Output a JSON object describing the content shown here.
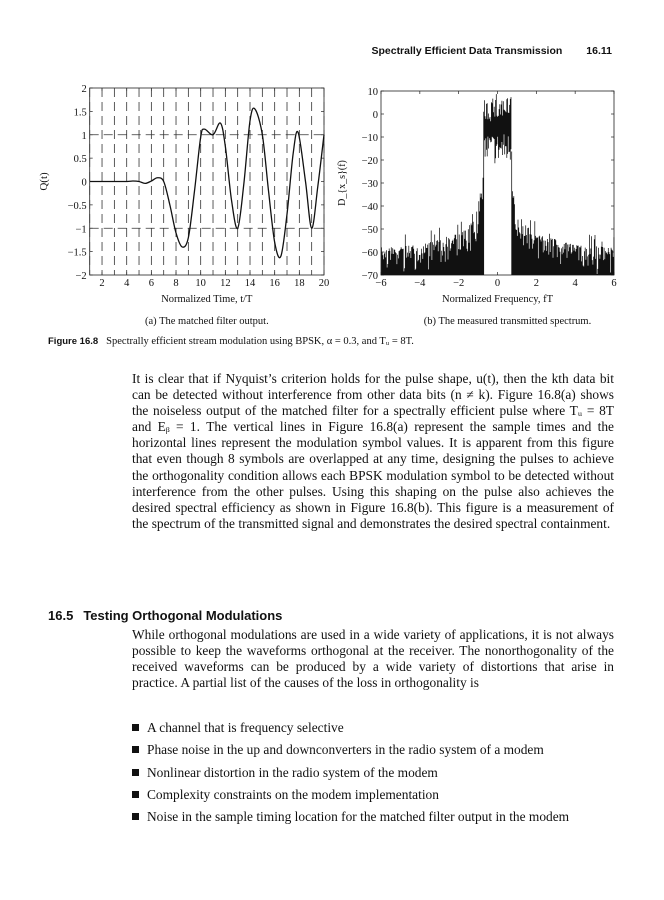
{
  "header": {
    "title": "Spectrally Efficient Data Transmission",
    "page": "16.11"
  },
  "chart_data": [
    {
      "type": "line",
      "ylabel": "Q(t)",
      "xlabel": "Normalized Time, t/T",
      "caption": "(a) The matched filter output.",
      "xlim": [
        1,
        20
      ],
      "ylim": [
        -2,
        2
      ],
      "xticks": [
        2,
        4,
        6,
        8,
        10,
        12,
        14,
        16,
        18,
        20
      ],
      "xtick_labels": [
        "2",
        "4",
        "6",
        "8",
        "10",
        "12",
        "14",
        "16",
        "18",
        "20"
      ],
      "yticks": [
        2,
        1.5,
        1,
        0.5,
        0,
        -0.5,
        -1,
        -1.5,
        -2
      ],
      "ytick_labels": [
        "2",
        "1.5",
        "1",
        "0.5",
        "0",
        "−0.5",
        "−1",
        "−1.5",
        "−2"
      ],
      "grid": "dashed vertical lines at each integer sample time; dashed horizontal lines at ±1",
      "x": [
        1,
        2,
        3,
        4,
        4.5,
        5,
        5.5,
        6,
        6.5,
        7,
        7.5,
        8,
        8.5,
        9,
        9.5,
        10,
        10.3,
        11,
        11.6,
        12,
        12.5,
        13,
        13.5,
        14,
        14.4,
        15,
        15.5,
        16,
        16.5,
        17,
        17.5,
        17.9,
        18.5,
        19,
        19.5,
        20
      ],
      "y": [
        0,
        0,
        0,
        0,
        0.01,
        0,
        -0.04,
        0.01,
        0.08,
        0,
        -0.5,
        -1.1,
        -1.4,
        -1.2,
        -0.2,
        0.95,
        1.12,
        1.0,
        1.25,
        0.75,
        -0.4,
        -1.0,
        -0.05,
        1.3,
        1.55,
        1.0,
        -0.2,
        -1.3,
        -1.6,
        -0.7,
        0.6,
        1.05,
        0.0,
        -1.0,
        -0.1,
        1.0
      ]
    },
    {
      "type": "line",
      "ylabel": "D_{x_s}(f)",
      "xlabel": "Normalized Frequency, fT",
      "caption": "(b) The measured transmitted spectrum.",
      "xlim": [
        -6,
        6
      ],
      "ylim": [
        -70,
        10
      ],
      "xticks": [
        -6,
        -4,
        -2,
        0,
        2,
        4,
        6
      ],
      "xtick_labels": [
        "−6",
        "−4",
        "−2",
        "0",
        "2",
        "4",
        "6"
      ],
      "yticks": [
        10,
        0,
        -10,
        -20,
        -30,
        -40,
        -50,
        -60,
        -70
      ],
      "ytick_labels": [
        "10",
        "0",
        "−10",
        "−20",
        "−30",
        "−40",
        "−50",
        "−60",
        "−70"
      ],
      "envelope_f": [
        -6,
        -4,
        -2,
        -1,
        -0.75,
        -0.7,
        0,
        0.7,
        0.75,
        1,
        2,
        4,
        6
      ],
      "envelope_upper_db": [
        -58,
        -57,
        -52,
        -45,
        -30,
        8,
        9,
        8,
        -30,
        -45,
        -52,
        -57,
        -58
      ],
      "inband_lower_db": -22
    }
  ],
  "figure_caption": {
    "label": "Figure 16.8",
    "text": "Spectrally efficient stream modulation using BPSK, α = 0.3, and Tᵤ = 8T."
  },
  "paragraph1": "It is clear that if Nyquist’s criterion holds for the pulse shape, u(t), then the kth data bit can be detected without interference from other data bits (n ≠ k). Figure 16.8(a) shows the noiseless output of the matched filter for a spectrally efficient pulse where Tᵤ = 8T  and Eᵦ = 1. The vertical lines in Figure 16.8(a) represent the sample times and the horizontal lines represent the modulation symbol values. It is apparent from this figure that even though 8 symbols are overlapped at any time, designing the pulses to achieve the orthogonality condition allows each BPSK modulation symbol to be detected without interference from the other pulses. Using this shaping on the pulse also achieves the desired spectral efficiency as shown in Figure 16.8(b). This figure is a measurement of the spectrum of the transmitted signal and demonstrates the desired spectral containment.",
  "section": {
    "number": "16.5",
    "title": "Testing Orthogonal Modulations"
  },
  "paragraph2": "While orthogonal modulations are used in a wide variety of applications, it is not always possible to keep the waveforms orthogonal at the receiver. The nonorthogonality of the received waveforms can be produced by a wide variety of distortions that arise in practice. A partial list of the causes of the loss in orthogonality is",
  "bullets": [
    "A channel that is frequency selective",
    "Phase noise in the up and downconverters in the radio system of a modem",
    "Nonlinear distortion in the radio system of the modem",
    "Complexity constraints on the modem implementation",
    "Noise in the sample timing location for the matched filter output in the modem"
  ]
}
